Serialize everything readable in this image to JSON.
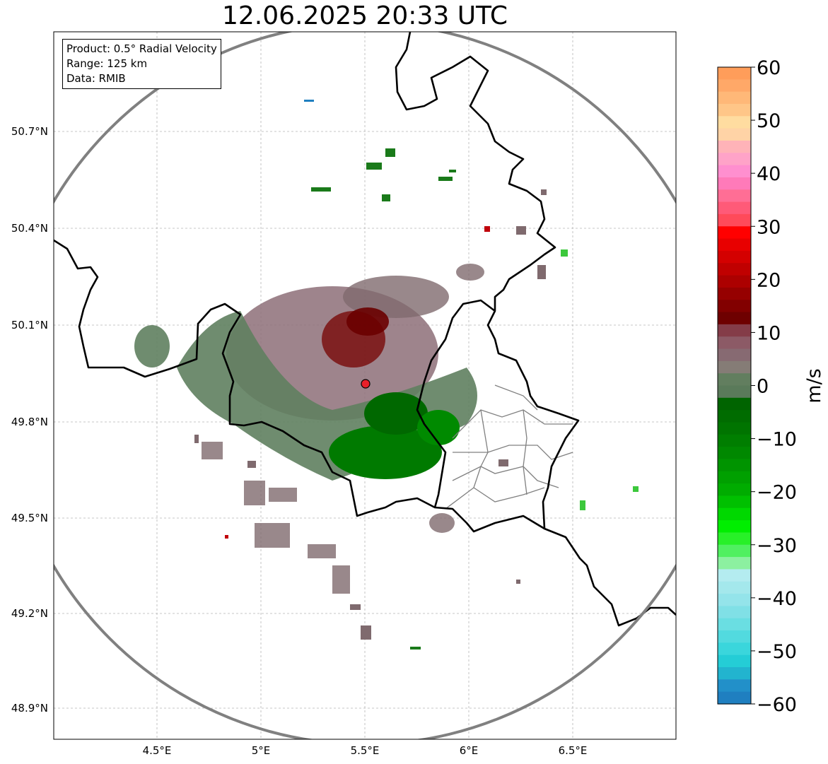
{
  "title": "12.06.2025 20:33 UTC",
  "info": {
    "product": "Product: 0.5° Radial Velocity",
    "range": "Range: 125 km",
    "data": "Data: RMIB"
  },
  "lat_labels": [
    "50.7°N",
    "50.4°N",
    "50.1°N",
    "49.8°N",
    "49.5°N",
    "49.2°N",
    "48.9°N"
  ],
  "lon_labels": [
    "4.5°E",
    "5°E",
    "5.5°E",
    "6°E",
    "6.5°E"
  ],
  "colorbar": {
    "label": "m/s",
    "tick_labels": [
      "60",
      "50",
      "40",
      "30",
      "20",
      "10",
      "0",
      "−10",
      "−20",
      "−30",
      "−40",
      "−50",
      "−60"
    ],
    "min": -60,
    "max": 60
  },
  "radar_site_marker": "radar-site",
  "colors": {
    "range_ring": "#808080",
    "border": "#000000",
    "admin_border": "#808080",
    "grid": "#b0b0b0",
    "site_marker": "#e8202a"
  }
}
